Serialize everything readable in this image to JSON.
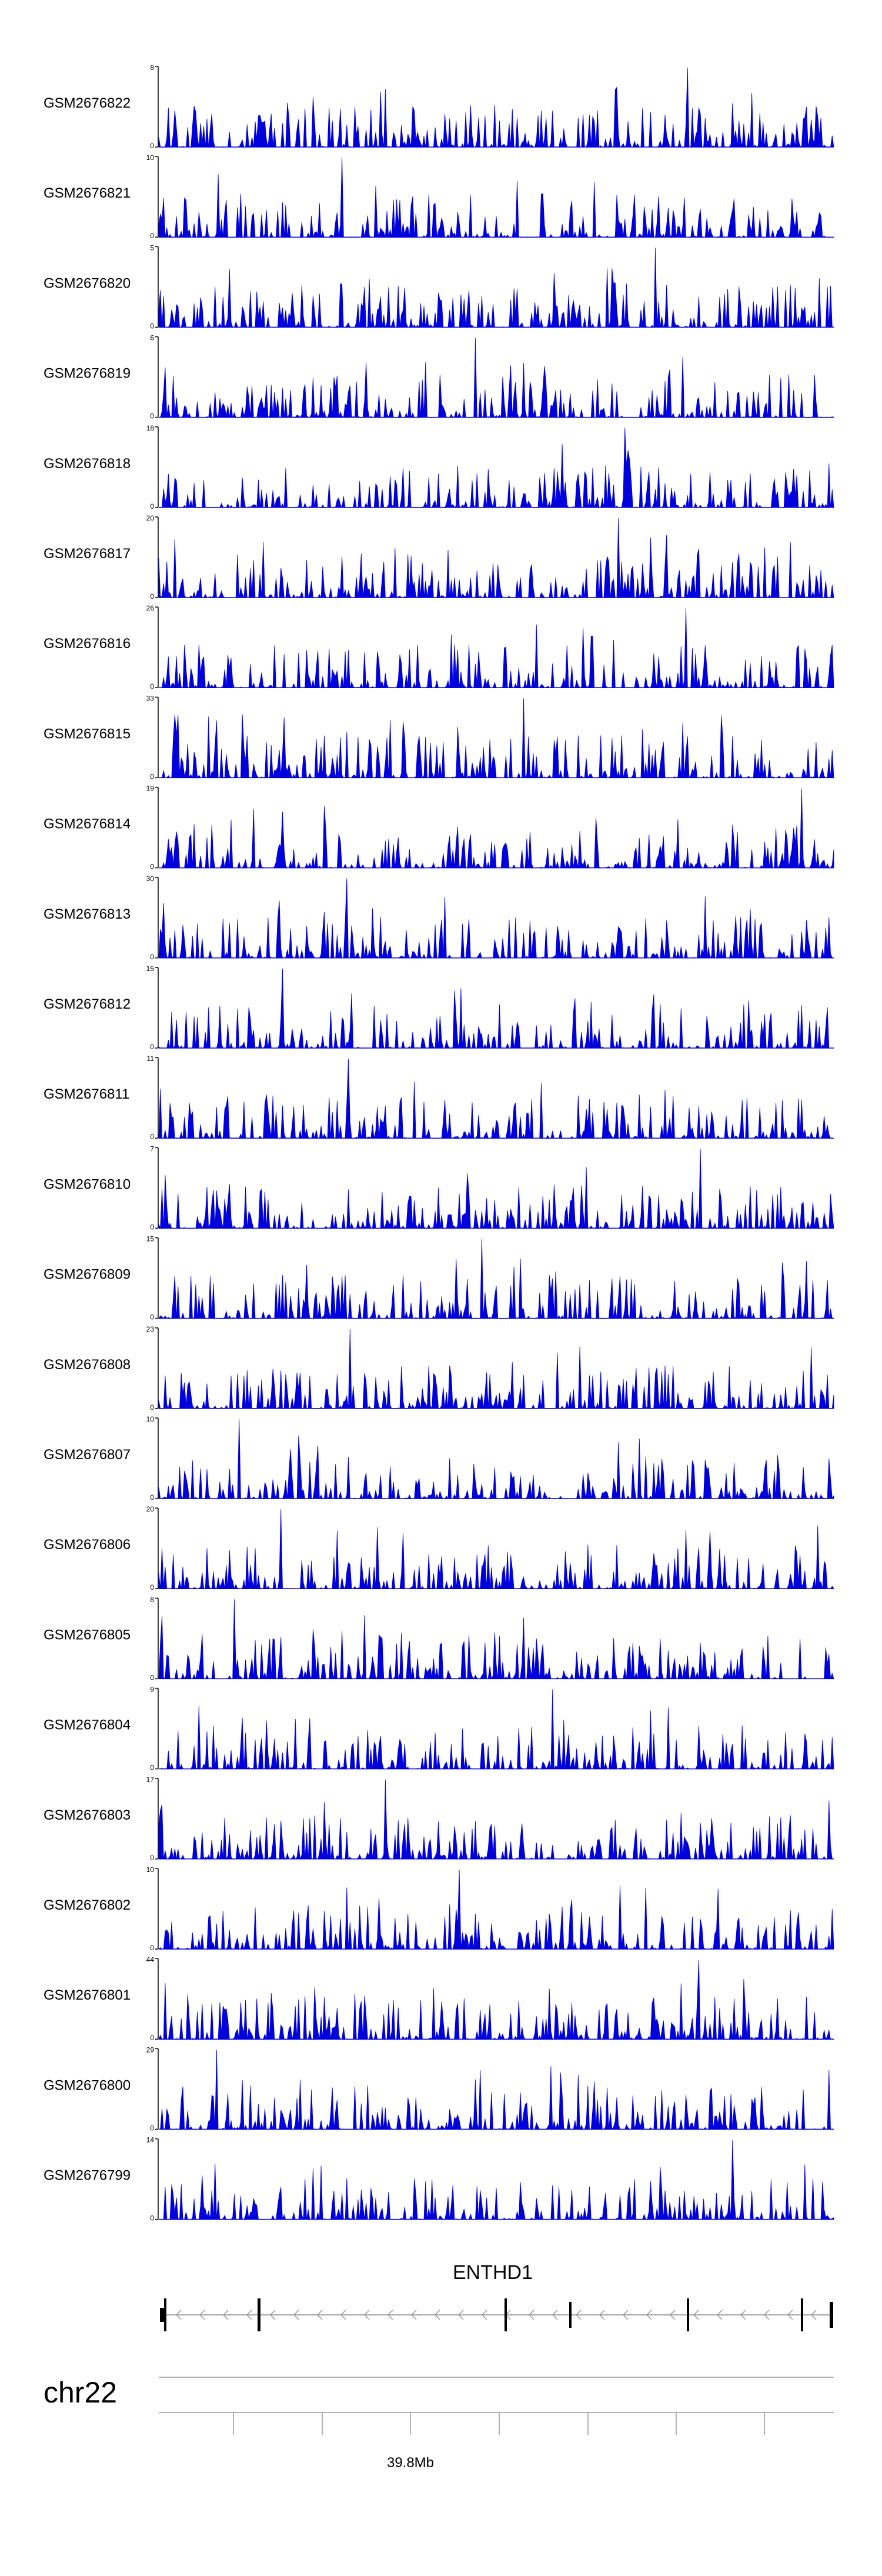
{
  "chart_data": {
    "type": "area",
    "color": "#0000dd",
    "tracks": [
      {
        "name": "GSM2676822",
        "ymax": "8",
        "ymin": "0",
        "peak": 1.0
      },
      {
        "name": "GSM2676821",
        "ymax": "10",
        "ymin": "0",
        "peak": 1.0
      },
      {
        "name": "GSM2676820",
        "ymax": "5",
        "ymin": "0",
        "peak": 1.0
      },
      {
        "name": "GSM2676819",
        "ymax": "6",
        "ymin": "0",
        "peak": 1.0
      },
      {
        "name": "GSM2676818",
        "ymax": "18",
        "ymin": "0",
        "peak": 1.0
      },
      {
        "name": "GSM2676817",
        "ymax": "20",
        "ymin": "0",
        "peak": 1.0
      },
      {
        "name": "GSM2676816",
        "ymax": "26",
        "ymin": "0",
        "peak": 1.0
      },
      {
        "name": "GSM2676815",
        "ymax": "33",
        "ymin": "0",
        "peak": 1.0
      },
      {
        "name": "GSM2676814",
        "ymax": "19",
        "ymin": "0",
        "peak": 1.0
      },
      {
        "name": "GSM2676813",
        "ymax": "30",
        "ymin": "0",
        "peak": 1.0
      },
      {
        "name": "GSM2676812",
        "ymax": "15",
        "ymin": "0",
        "peak": 1.0
      },
      {
        "name": "GSM2676811",
        "ymax": "11",
        "ymin": "0",
        "peak": 1.0
      },
      {
        "name": "GSM2676810",
        "ymax": "7",
        "ymin": "0",
        "peak": 1.0
      },
      {
        "name": "GSM2676809",
        "ymax": "15",
        "ymin": "0",
        "peak": 1.0
      },
      {
        "name": "GSM2676808",
        "ymax": "23",
        "ymin": "0",
        "peak": 1.0
      },
      {
        "name": "GSM2676807",
        "ymax": "10",
        "ymin": "0",
        "peak": 1.0
      },
      {
        "name": "GSM2676806",
        "ymax": "20",
        "ymin": "0",
        "peak": 1.0
      },
      {
        "name": "GSM2676805",
        "ymax": "8",
        "ymin": "0",
        "peak": 1.0
      },
      {
        "name": "GSM2676804",
        "ymax": "9",
        "ymin": "0",
        "peak": 1.0
      },
      {
        "name": "GSM2676803",
        "ymax": "17",
        "ymin": "0",
        "peak": 1.0
      },
      {
        "name": "GSM2676802",
        "ymax": "10",
        "ymin": "0",
        "peak": 1.0
      },
      {
        "name": "GSM2676801",
        "ymax": "44",
        "ymin": "0",
        "peak": 1.0
      },
      {
        "name": "GSM2676800",
        "ymax": "29",
        "ymin": "0",
        "peak": 1.0
      },
      {
        "name": "GSM2676799",
        "ymax": "14",
        "ymin": "0",
        "peak": 1.0
      }
    ],
    "gene": {
      "name": "ENTHD1",
      "strand": "-"
    },
    "genome_axis": {
      "chromosome": "chr22",
      "tick_labels": [
        "39.8Mb"
      ]
    }
  }
}
